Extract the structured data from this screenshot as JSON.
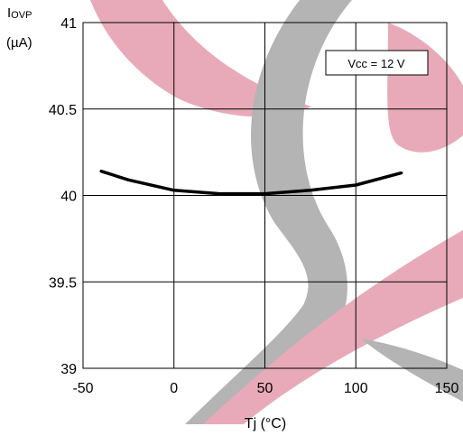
{
  "chart_data": {
    "type": "line",
    "ylabel_main": "I",
    "ylabel_sub": "OVP",
    "ylabel_unit": "(µA)",
    "xlabel": "Tj  (°C)",
    "xlim": [
      -50,
      150
    ],
    "ylim": [
      39,
      41
    ],
    "xticks": [
      -50,
      0,
      50,
      100,
      150
    ],
    "xtick_labels": [
      "-50",
      "0",
      "50",
      "100",
      "150"
    ],
    "yticks": [
      39,
      39.5,
      40,
      40.5,
      41
    ],
    "ytick_labels": [
      "39",
      "39.5",
      "40",
      "40.5",
      "41"
    ],
    "grid": true,
    "annotation": "Vcc = 12 V",
    "series": [
      {
        "color": "#000000",
        "x": [
          -40,
          -25,
          0,
          25,
          50,
          75,
          100,
          125
        ],
        "y": [
          40.14,
          40.09,
          40.03,
          40.01,
          40.01,
          40.03,
          40.06,
          40.13
        ]
      }
    ]
  },
  "colors": {
    "watermark_red": "#e8aab9",
    "watermark_gray": "#b4b4b4"
  }
}
